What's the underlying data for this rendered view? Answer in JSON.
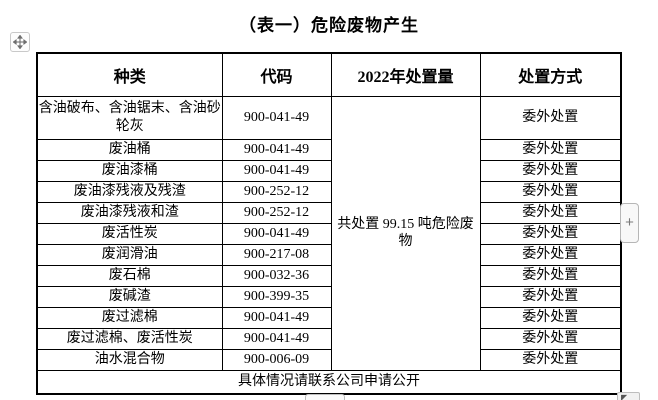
{
  "title": "（表一）危险废物产生",
  "table": {
    "headers": [
      "种类",
      "代码",
      "2022年处置量",
      "处置方式"
    ],
    "rows": [
      {
        "type": "含油破布、含油锯末、含油砂轮灰",
        "code": "900-041-49",
        "method": "委外处置"
      },
      {
        "type": "废油桶",
        "code": "900-041-49",
        "method": "委外处置"
      },
      {
        "type": "废油漆桶",
        "code": "900-041-49",
        "method": "委外处置"
      },
      {
        "type": "废油漆残液及残渣",
        "code": "900-252-12",
        "method": "委外处置"
      },
      {
        "type": "废油漆残液和渣",
        "code": "900-252-12",
        "method": "委外处置"
      },
      {
        "type": "废活性炭",
        "code": "900-041-49",
        "method": "委外处置"
      },
      {
        "type": "废润滑油",
        "code": "900-217-08",
        "method": "委外处置"
      },
      {
        "type": "废石棉",
        "code": "900-032-36",
        "method": "委外处置"
      },
      {
        "type": "废碱渣",
        "code": "900-399-35",
        "method": "委外处置"
      },
      {
        "type": "废过滤棉",
        "code": "900-041-49",
        "method": "委外处置"
      },
      {
        "type": "废过滤棉、废活性炭",
        "code": "900-041-49",
        "method": "委外处置"
      },
      {
        "type": "油水混合物",
        "code": "900-006-09",
        "method": "委外处置"
      }
    ],
    "disposal_total": "共处置 99.15 吨危险废物",
    "footer": "具体情况请联系公司申请公开"
  },
  "controls": {
    "add_button_label": "+"
  },
  "colors": {
    "border": "#000000",
    "control_border": "#b6b6b6",
    "control_bg": "#f8f8f8",
    "control_glyph": "#7a7a7a"
  }
}
